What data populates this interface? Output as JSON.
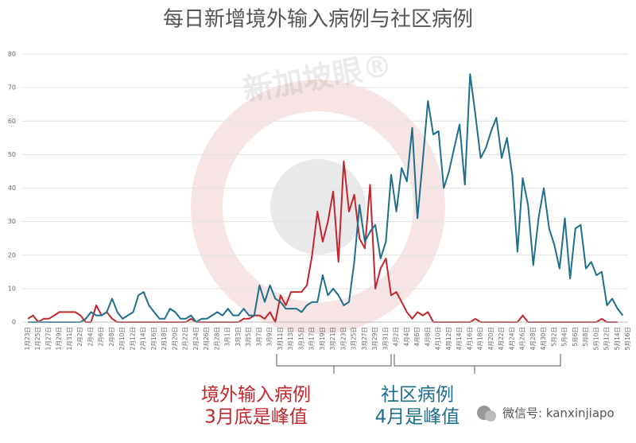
{
  "chart_data": {
    "type": "line",
    "title": "每日新增境外输入病例与社区病例",
    "watermark": "新加坡眼®",
    "categories": [
      "1月23日",
      null,
      "1月25日",
      null,
      "1月27日",
      null,
      "1月29日",
      null,
      "1月31日",
      null,
      "2月2日",
      null,
      "2月4日",
      null,
      "2月6日",
      null,
      "2月8日",
      null,
      "2月10日",
      null,
      "2月12日",
      null,
      "2月14日",
      null,
      "2月16日",
      null,
      "2月18日",
      null,
      "2月20日",
      null,
      "2月22日",
      null,
      "2月24日",
      null,
      "2月26日",
      null,
      "2月28日",
      null,
      "3月1日",
      null,
      "3月3日",
      null,
      "3月5日",
      null,
      "3月7日",
      null,
      "3月9日",
      null,
      "3月11日",
      null,
      "3月13日",
      null,
      "3月15日",
      null,
      "3月17日",
      null,
      "3月19日",
      null,
      "3月21日",
      null,
      "3月23日",
      null,
      "3月25日",
      null,
      "3月27日",
      null,
      "3月29日",
      null,
      "3月31日",
      null,
      "4月2日",
      null,
      "4月4日",
      null,
      "4月6日",
      null,
      "4月8日",
      null,
      "4月10日",
      null,
      "4月12日",
      null,
      "4月14日",
      null,
      "4月16日",
      null,
      "4月18日",
      null,
      "4月20日",
      null,
      "4月22日",
      null,
      "4月24日",
      null,
      "4月26日",
      null,
      "4月28日",
      null,
      "4月30日",
      null,
      "5月2日",
      null,
      "5月4日",
      null,
      "5月6日",
      null,
      "5月8日",
      null,
      "5月10日",
      null,
      "5月12日",
      null,
      "5月14日",
      null,
      "5月16日"
    ],
    "series": [
      {
        "color": "#c0272d",
        "values": [
          1,
          2,
          0,
          1,
          1,
          2,
          3,
          3,
          3,
          3,
          2,
          0,
          0,
          5,
          2,
          3,
          1,
          0,
          0,
          0,
          0,
          0,
          0,
          0,
          0,
          0,
          0,
          0,
          0,
          0,
          0,
          1,
          0,
          0,
          0,
          0,
          0,
          0,
          0,
          0,
          0,
          1,
          1,
          2,
          2,
          1,
          3,
          0,
          8,
          5,
          9,
          9,
          9,
          11,
          20,
          33,
          24,
          30,
          39,
          18,
          48,
          33,
          38,
          25,
          22,
          41,
          10,
          16,
          19,
          8,
          9,
          6,
          3,
          1,
          3,
          2,
          3,
          0,
          0,
          0,
          0,
          0,
          0,
          0,
          0,
          1,
          0,
          0,
          0,
          0,
          0,
          0,
          0,
          0,
          2,
          0,
          0,
          0,
          0,
          0,
          0,
          0,
          0,
          0,
          0,
          0,
          0,
          0,
          0,
          1,
          0,
          0,
          0,
          null,
          null
        ]
      },
      {
        "color": "#1f6e8c",
        "values": [
          0,
          0,
          0,
          0,
          0,
          0,
          0,
          0,
          0,
          0,
          0,
          1,
          3,
          2,
          2,
          3,
          7,
          3,
          1,
          2,
          3,
          8,
          9,
          5,
          3,
          1,
          1,
          4,
          3,
          1,
          1,
          2,
          0,
          1,
          1,
          2,
          3,
          2,
          4,
          2,
          2,
          4,
          2,
          2,
          11,
          6,
          11,
          7,
          6,
          4,
          4,
          4,
          3,
          5,
          6,
          6,
          14,
          8,
          10,
          8,
          5,
          6,
          18,
          35,
          24,
          27,
          29,
          19,
          24,
          44,
          33,
          46,
          42,
          58,
          31,
          48,
          66,
          56,
          57,
          40,
          45,
          52,
          59,
          41,
          74,
          62,
          49,
          52,
          57,
          61,
          49,
          55,
          44,
          21,
          43,
          35,
          17,
          31,
          40,
          28,
          23,
          16,
          31,
          13,
          28,
          29,
          16,
          18,
          14,
          15,
          5,
          7,
          4,
          2,
          null
        ]
      }
    ],
    "ylim": [
      0,
      80
    ],
    "yticks": [
      0,
      10,
      20,
      30,
      40,
      50,
      60,
      70,
      80
    ],
    "grid": true,
    "annotations": [
      {
        "lines": [
          "境外输入病例",
          "3月底是峰值"
        ],
        "color": "#c0272d"
      },
      {
        "lines": [
          "社区病例",
          "4月是峰值"
        ],
        "color": "#1f6e8c"
      }
    ],
    "credit": "微信号: kanxinjiapo"
  }
}
